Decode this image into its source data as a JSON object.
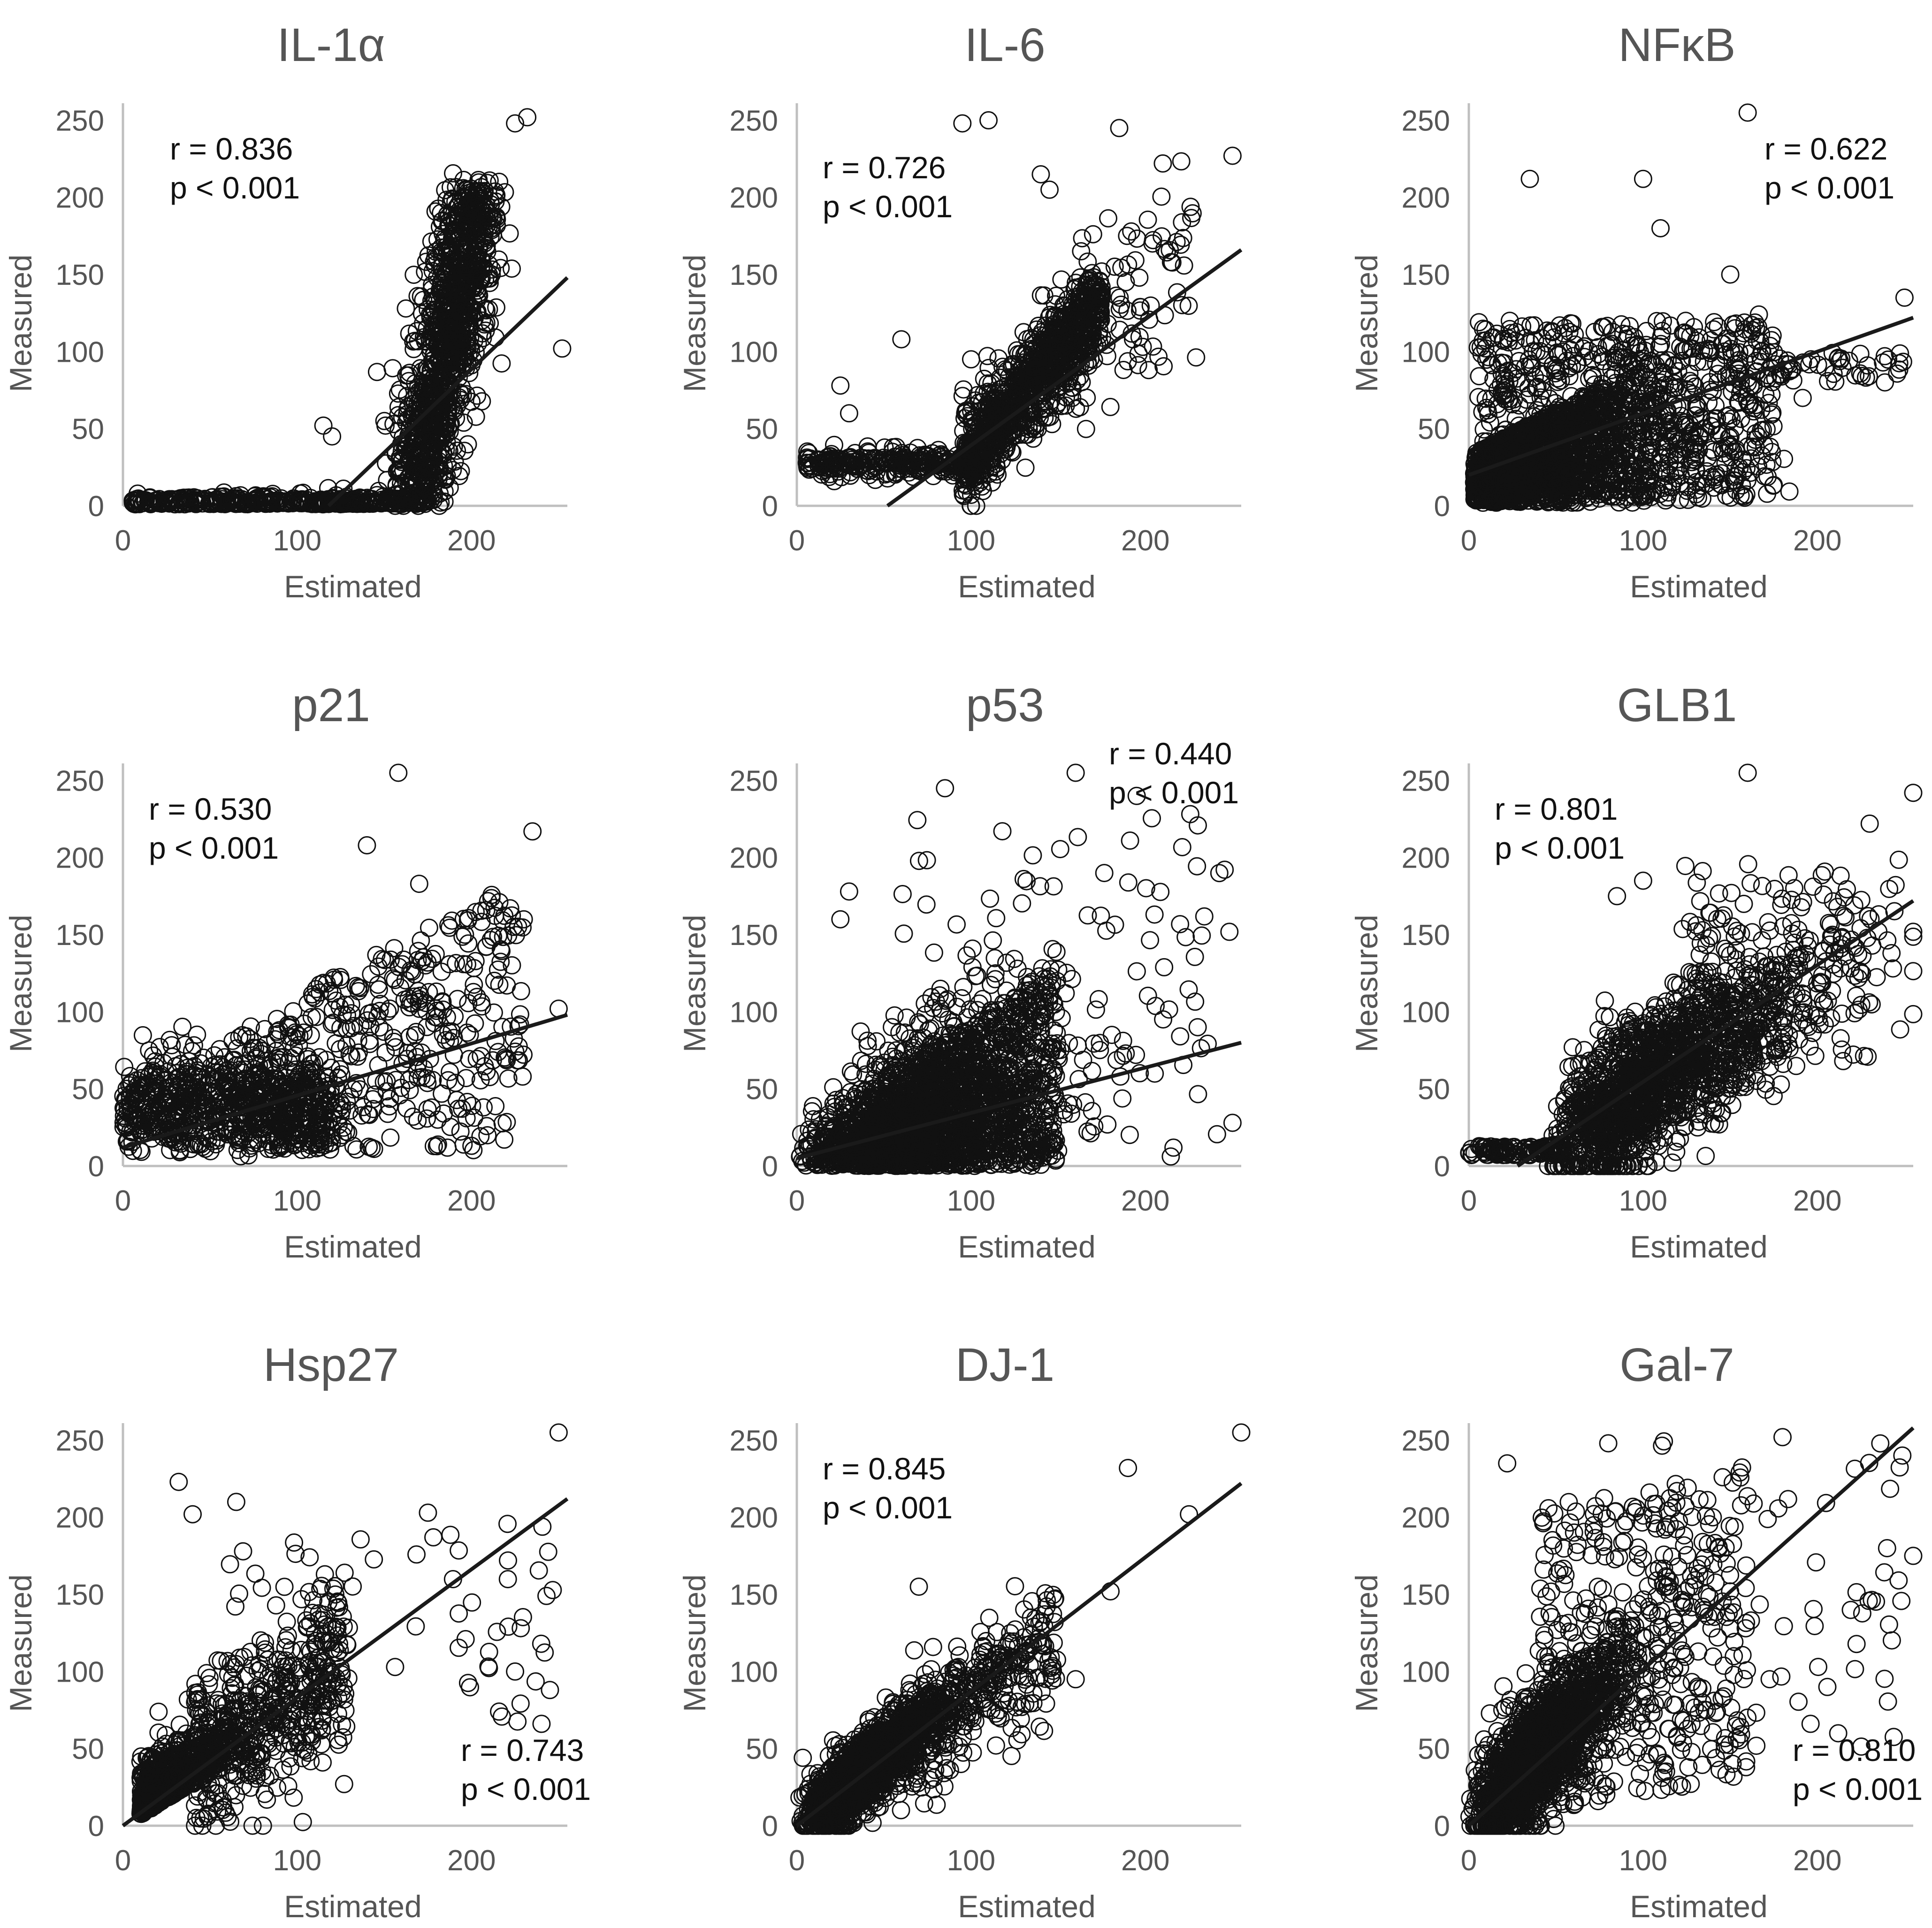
{
  "figure": {
    "xlabel": "Estimated",
    "ylabel": "Measured",
    "r_prefix": "r = ",
    "p_text": "p < 0.001"
  },
  "chart_data": [
    {
      "type": "scatter",
      "title": "IL-1α",
      "r": "0.836",
      "p": "p < 0.001",
      "stat_pos": "top-left",
      "xlim": [
        0,
        255
      ],
      "ylim": [
        0,
        255
      ],
      "xticks": [
        0,
        100,
        200
      ],
      "yticks": [
        0,
        50,
        100,
        150,
        200,
        250
      ],
      "xlabel": "Estimated",
      "ylabel": "Measured",
      "fit": {
        "x": [
          118,
          255
        ],
        "y": [
          0,
          148
        ]
      },
      "shape": "il1a"
    },
    {
      "type": "scatter",
      "title": "IL-6",
      "r": "0.726",
      "p": "p < 0.001",
      "stat_pos": "top-left",
      "xlim": [
        0,
        255
      ],
      "ylim": [
        0,
        255
      ],
      "xticks": [
        0,
        100,
        200
      ],
      "yticks": [
        0,
        50,
        100,
        150,
        200,
        250
      ],
      "xlabel": "Estimated",
      "ylabel": "Measured",
      "fit": {
        "x": [
          52,
          255
        ],
        "y": [
          0,
          166
        ]
      },
      "shape": "il6"
    },
    {
      "type": "scatter",
      "title": "NFκB",
      "r": "0.622",
      "p": "p < 0.001",
      "stat_pos": "top-right",
      "xlim": [
        0,
        255
      ],
      "ylim": [
        0,
        255
      ],
      "xticks": [
        0,
        100,
        200
      ],
      "yticks": [
        0,
        50,
        100,
        150,
        200,
        250
      ],
      "xlabel": "Estimated",
      "ylabel": "Measured",
      "fit": {
        "x": [
          0,
          255
        ],
        "y": [
          20,
          122
        ]
      },
      "shape": "nfkb"
    },
    {
      "type": "scatter",
      "title": "p21",
      "r": "0.530",
      "p": "p < 0.001",
      "stat_pos": "top-left",
      "xlim": [
        0,
        255
      ],
      "ylim": [
        0,
        255
      ],
      "xticks": [
        0,
        100,
        200
      ],
      "yticks": [
        0,
        50,
        100,
        150,
        200,
        250
      ],
      "xlabel": "Estimated",
      "ylabel": "Measured",
      "fit": {
        "x": [
          0,
          255
        ],
        "y": [
          12,
          98
        ]
      },
      "shape": "p21"
    },
    {
      "type": "scatter",
      "title": "p53",
      "r": "0.440",
      "p": "p < 0.001",
      "stat_pos": "top-right",
      "xlim": [
        0,
        255
      ],
      "ylim": [
        0,
        255
      ],
      "xticks": [
        0,
        100,
        200
      ],
      "yticks": [
        0,
        50,
        100,
        150,
        200,
        250
      ],
      "xlabel": "Estimated",
      "ylabel": "Measured",
      "fit": {
        "x": [
          0,
          255
        ],
        "y": [
          5,
          80
        ]
      },
      "shape": "p53"
    },
    {
      "type": "scatter",
      "title": "GLB1",
      "r": "0.801",
      "p": "p < 0.001",
      "stat_pos": "top-left",
      "xlim": [
        0,
        255
      ],
      "ylim": [
        0,
        255
      ],
      "xticks": [
        0,
        100,
        200
      ],
      "yticks": [
        0,
        50,
        100,
        150,
        200,
        250
      ],
      "xlabel": "Estimated",
      "ylabel": "Measured",
      "fit": {
        "x": [
          28,
          255
        ],
        "y": [
          0,
          172
        ]
      },
      "shape": "glb1"
    },
    {
      "type": "scatter",
      "title": "Hsp27",
      "r": "0.743",
      "p": "p < 0.001",
      "stat_pos": "bottom-right",
      "xlim": [
        0,
        255
      ],
      "ylim": [
        0,
        255
      ],
      "xticks": [
        0,
        100,
        200
      ],
      "yticks": [
        0,
        50,
        100,
        150,
        200,
        250
      ],
      "xlabel": "Estimated",
      "ylabel": "Measured",
      "fit": {
        "x": [
          0,
          255
        ],
        "y": [
          0,
          212
        ]
      },
      "shape": "hsp27"
    },
    {
      "type": "scatter",
      "title": "DJ-1",
      "r": "0.845",
      "p": "p < 0.001",
      "stat_pos": "top-left",
      "xlim": [
        0,
        255
      ],
      "ylim": [
        0,
        255
      ],
      "xticks": [
        0,
        100,
        200
      ],
      "yticks": [
        0,
        50,
        100,
        150,
        200,
        250
      ],
      "xlabel": "Estimated",
      "ylabel": "Measured",
      "fit": {
        "x": [
          0,
          255
        ],
        "y": [
          0,
          222
        ]
      },
      "shape": "dj1"
    },
    {
      "type": "scatter",
      "title": "Gal-7",
      "r": "0.810",
      "p": "p < 0.001",
      "stat_pos": "bottom-right",
      "xlim": [
        0,
        255
      ],
      "ylim": [
        0,
        255
      ],
      "xticks": [
        0,
        100,
        200
      ],
      "yticks": [
        0,
        50,
        100,
        150,
        200,
        250
      ],
      "xlabel": "Estimated",
      "ylabel": "Measured",
      "fit": {
        "x": [
          0,
          255
        ],
        "y": [
          0,
          258
        ]
      },
      "shape": "gal7"
    }
  ]
}
